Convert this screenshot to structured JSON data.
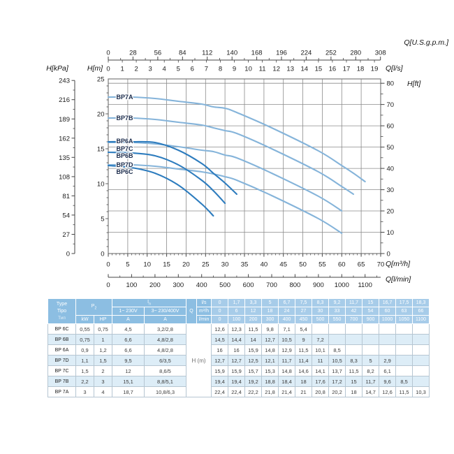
{
  "colors": {
    "curve_light": "#85b4da",
    "curve_dark": "#2d7cbe",
    "curve_label": "#1c2c4c",
    "grid": "#8a8a8a",
    "frame": "#6e6e6e",
    "tick": "#444444",
    "table_header_bg": "#8cbee2",
    "table_header_value_bg": "#a7cce9",
    "table_alt_row_bg": "#ddedf7"
  },
  "chart": {
    "axes": {
      "gpm": {
        "label": "Q[U.S.g.p.m.]",
        "ticks": [
          0,
          28,
          56,
          84,
          112,
          140,
          168,
          196,
          224,
          252,
          280,
          308
        ]
      },
      "ls": {
        "label": "Q[l/s]",
        "ticks": [
          0,
          1,
          2,
          3,
          4,
          5,
          6,
          7,
          8,
          9,
          10,
          11,
          12,
          13,
          14,
          15,
          16,
          17,
          18,
          19
        ]
      },
      "kpa": {
        "label": "H[kPa]",
        "ticks": [
          0,
          27,
          54,
          81,
          108,
          135,
          162,
          189,
          216,
          243
        ]
      },
      "m": {
        "label": "H[m]",
        "ticks": [
          0,
          5,
          10,
          15,
          20,
          25
        ]
      },
      "ft": {
        "label": "H[ft]",
        "ticks": [
          0,
          10,
          20,
          30,
          40,
          50,
          60,
          70,
          80
        ]
      },
      "m3h": {
        "label": "Q[m³/h]",
        "ticks": [
          0,
          5,
          10,
          15,
          20,
          25,
          30,
          35,
          40,
          45,
          50,
          55,
          60,
          65,
          70
        ]
      },
      "lmin": {
        "label": "Q[l/min]",
        "ticks": [
          0,
          100,
          200,
          300,
          400,
          500,
          600,
          700,
          800,
          900,
          1000,
          1100
        ]
      }
    }
  },
  "chart_data": {
    "type": "line",
    "title": "",
    "xlabel": "Q[m³/h]",
    "ylabel": "H[m]",
    "xlim": [
      0,
      70
    ],
    "ylim": [
      0,
      25
    ],
    "grid": {
      "vertical_step_m3h": 5,
      "horizontal_step_ft": 10
    },
    "x_m3h": [
      0,
      6,
      12,
      18,
      24,
      27,
      30,
      33,
      42,
      54,
      60,
      63,
      66
    ],
    "series": [
      {
        "name": "BP7A",
        "shade": "curve_light",
        "values": [
          22.4,
          22.4,
          22.2,
          21.8,
          21.4,
          21,
          20.8,
          20.2,
          18,
          14.7,
          12.6,
          11.5,
          10.3
        ],
        "label_dy": 3
      },
      {
        "name": "BP7B",
        "shade": "curve_light",
        "values": [
          19.4,
          19.4,
          19.2,
          18.8,
          18.4,
          18,
          17.6,
          17.2,
          15,
          11.7,
          9.6,
          8.5
        ],
        "label_dy": 3
      },
      {
        "name": "BP7C",
        "shade": "curve_light",
        "values": [
          15.9,
          15.9,
          15.7,
          15.3,
          14.8,
          14.6,
          14.1,
          13.7,
          11.5,
          8.2,
          6.1
        ],
        "label_dy": 12
      },
      {
        "name": "BP7D",
        "shade": "curve_light",
        "values": [
          12.7,
          12.7,
          12.5,
          12.1,
          11.7,
          11.4,
          11,
          10.5,
          8.3,
          5,
          2.9
        ],
        "label_dy": 3
      },
      {
        "name": "BP6A",
        "shade": "curve_dark",
        "values": [
          16,
          16,
          15.9,
          14.8,
          12.9,
          11.5,
          10.1,
          8.5
        ],
        "label_dy": 2
      },
      {
        "name": "BP6B",
        "shade": "curve_dark",
        "values": [
          14.5,
          14.4,
          14,
          12.7,
          10.5,
          9,
          7.2
        ],
        "label_dy": 8
      },
      {
        "name": "BP6C",
        "shade": "curve_dark",
        "values": [
          12.6,
          12.3,
          11.5,
          9.8,
          7.1,
          5.4
        ],
        "label_dy": 12
      }
    ],
    "label_order": [
      "BP7A",
      "BP7B",
      "BP6A",
      "BP7C",
      "BP6B",
      "BP7D",
      "BP6C"
    ]
  },
  "table": {
    "type_header": [
      "Type",
      "Tipo",
      "Тип"
    ],
    "p2_label": {
      "base": "P",
      "sub": "2"
    },
    "in_label": {
      "base": "I",
      "sub": "n"
    },
    "q_label": "Q",
    "h_label": "H (m)",
    "kw_label": "kW",
    "hp_label": "HP",
    "v1_label": "1~ 230V",
    "v3_label": "3~ 230/400V",
    "amp_label": "A",
    "units": [
      "l/s",
      "m³/h",
      "l/min"
    ],
    "q_ls": [
      "0",
      "1,7",
      "3,3",
      "5",
      "6,7",
      "7,5",
      "8,3",
      "9,2",
      "11,7",
      "15",
      "16,7",
      "17,5",
      "18,3"
    ],
    "q_m3h": [
      "0",
      "6",
      "12",
      "18",
      "24",
      "27",
      "30",
      "33",
      "42",
      "54",
      "60",
      "63",
      "66"
    ],
    "q_lmin": [
      "0",
      "100",
      "200",
      "300",
      "400",
      "450",
      "500",
      "550",
      "700",
      "900",
      "1000",
      "1050",
      "1100"
    ],
    "rows": [
      {
        "type": "BP 6C",
        "kw": "0,55",
        "hp": "0,75",
        "a1": "4,5",
        "a3": "3,2/2,8",
        "h": [
          "12,6",
          "12,3",
          "11,5",
          "9,8",
          "7,1",
          "5,4",
          "",
          "",
          "",
          "",
          "",
          "",
          ""
        ]
      },
      {
        "type": "BP 6B",
        "kw": "0,75",
        "hp": "1",
        "a1": "6,6",
        "a3": "4,8/2,8",
        "h": [
          "14,5",
          "14,4",
          "14",
          "12,7",
          "10,5",
          "9",
          "7,2",
          "",
          "",
          "",
          "",
          "",
          ""
        ]
      },
      {
        "type": "BP 6A",
        "kw": "0,9",
        "hp": "1,2",
        "a1": "6,6",
        "a3": "4,8/2,8",
        "h": [
          "16",
          "16",
          "15,9",
          "14,8",
          "12,9",
          "11,5",
          "10,1",
          "8,5",
          "",
          "",
          "",
          "",
          ""
        ]
      },
      {
        "type": "BP 7D",
        "kw": "1,1",
        "hp": "1,5",
        "a1": "9,5",
        "a3": "6/3,5",
        "h": [
          "12,7",
          "12,7",
          "12,5",
          "12,1",
          "11,7",
          "11,4",
          "11",
          "10,5",
          "8,3",
          "5",
          "2,9",
          "",
          ""
        ]
      },
      {
        "type": "BP 7C",
        "kw": "1,5",
        "hp": "2",
        "a1": "12",
        "a3": "8,6/5",
        "h": [
          "15,9",
          "15,9",
          "15,7",
          "15,3",
          "14,8",
          "14,6",
          "14,1",
          "13,7",
          "11,5",
          "8,2",
          "6,1",
          "",
          ""
        ]
      },
      {
        "type": "BP 7B",
        "kw": "2,2",
        "hp": "3",
        "a1": "15,1",
        "a3": "8,8/5,1",
        "h": [
          "19,4",
          "19,4",
          "19,2",
          "18,8",
          "18,4",
          "18",
          "17,6",
          "17,2",
          "15",
          "11,7",
          "9,6",
          "8,5",
          ""
        ]
      },
      {
        "type": "BP 7A",
        "kw": "3",
        "hp": "4",
        "a1": "18,7",
        "a3": "10,8/6,3",
        "h": [
          "22,4",
          "22,4",
          "22,2",
          "21,8",
          "21,4",
          "21",
          "20,8",
          "20,2",
          "18",
          "14,7",
          "12,6",
          "11,5",
          "10,3"
        ]
      }
    ]
  }
}
